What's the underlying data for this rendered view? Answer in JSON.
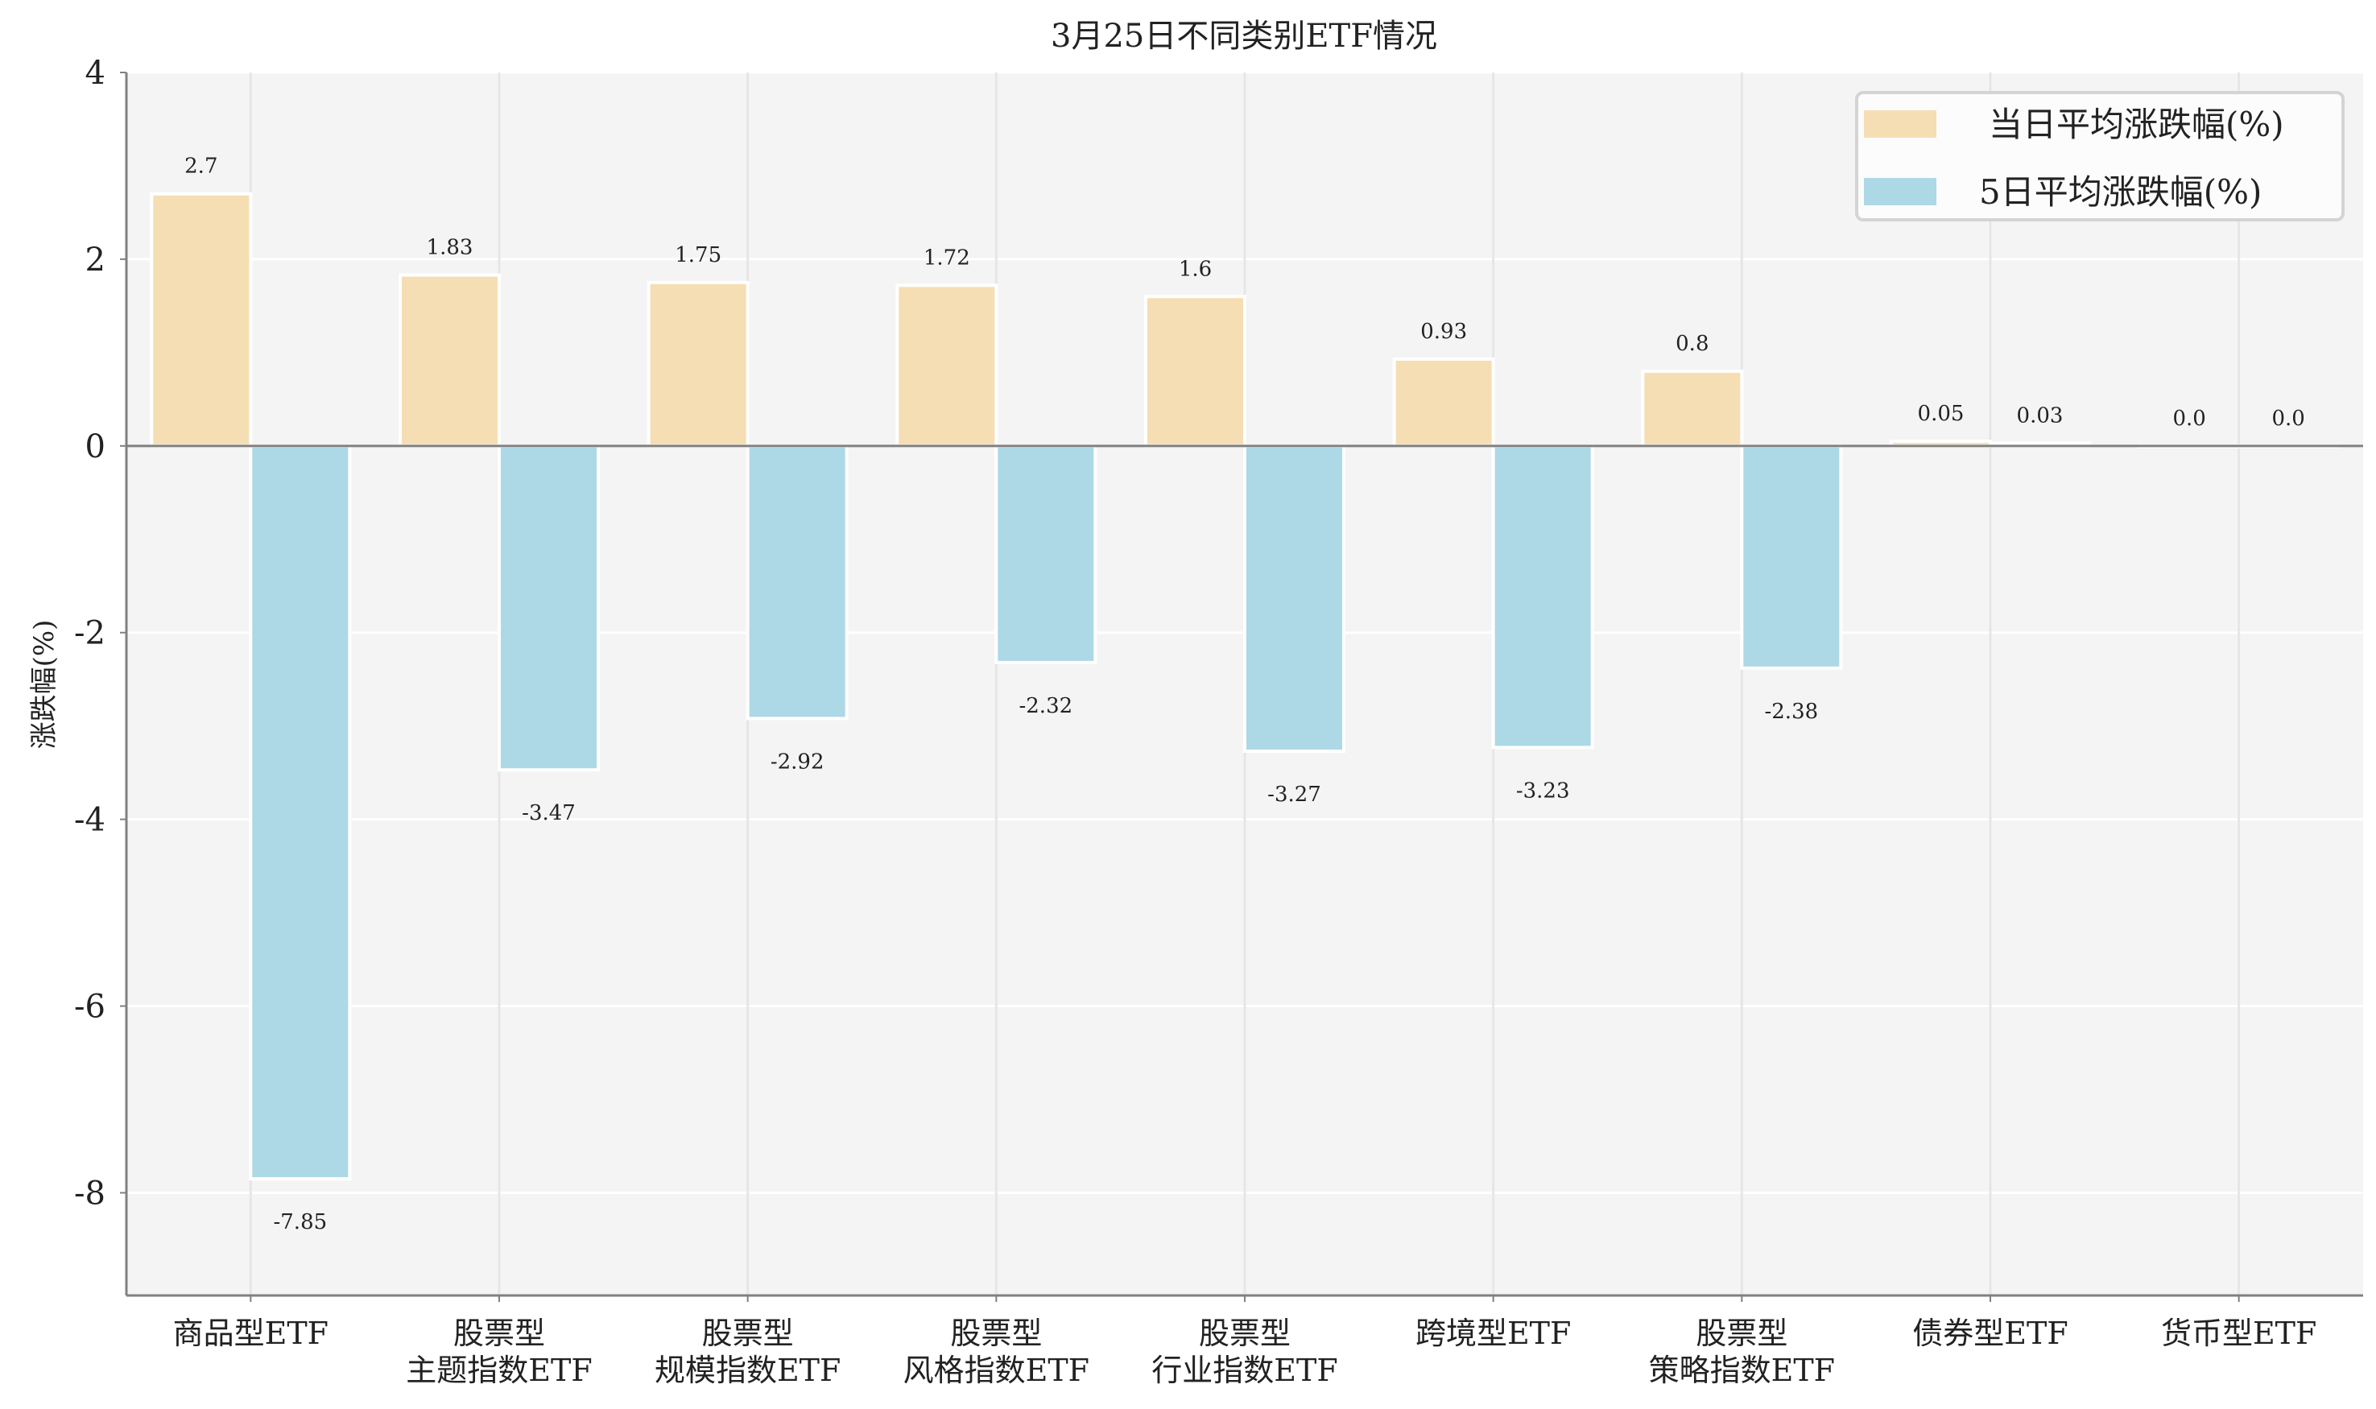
{
  "chart_data": {
    "type": "bar",
    "title": "3月25日不同类别ETF情况",
    "xlabel": "",
    "ylabel": "涨跌幅(%)",
    "ylim": [
      -9.1,
      4
    ],
    "yticks": [
      4,
      2,
      0,
      -2,
      -4,
      -6,
      -8
    ],
    "grid": true,
    "legend_placement": "top-right",
    "categories": [
      "商品型ETF",
      "股票型\n主题指数ETF",
      "股票型\n规模指数ETF",
      "股票型\n风格指数ETF",
      "股票型\n行业指数ETF",
      "跨境型ETF",
      "股票型\n策略指数ETF",
      "债券型ETF",
      "货币型ETF"
    ],
    "series": [
      {
        "name": "当日平均涨跌幅(%)",
        "color": "#f5deb3",
        "values": [
          2.7,
          1.83,
          1.75,
          1.72,
          1.6,
          0.93,
          0.8,
          0.05,
          0.0
        ]
      },
      {
        "name": "5日平均涨跌幅(%)",
        "color": "#add8e6",
        "values": [
          -7.85,
          -3.47,
          -2.92,
          -2.32,
          -3.27,
          -3.23,
          -2.38,
          0.03,
          0.0
        ]
      }
    ],
    "colors": {
      "plot_background": "#f4f4f4",
      "axis": "#808080",
      "grid": "#ffffff"
    }
  }
}
